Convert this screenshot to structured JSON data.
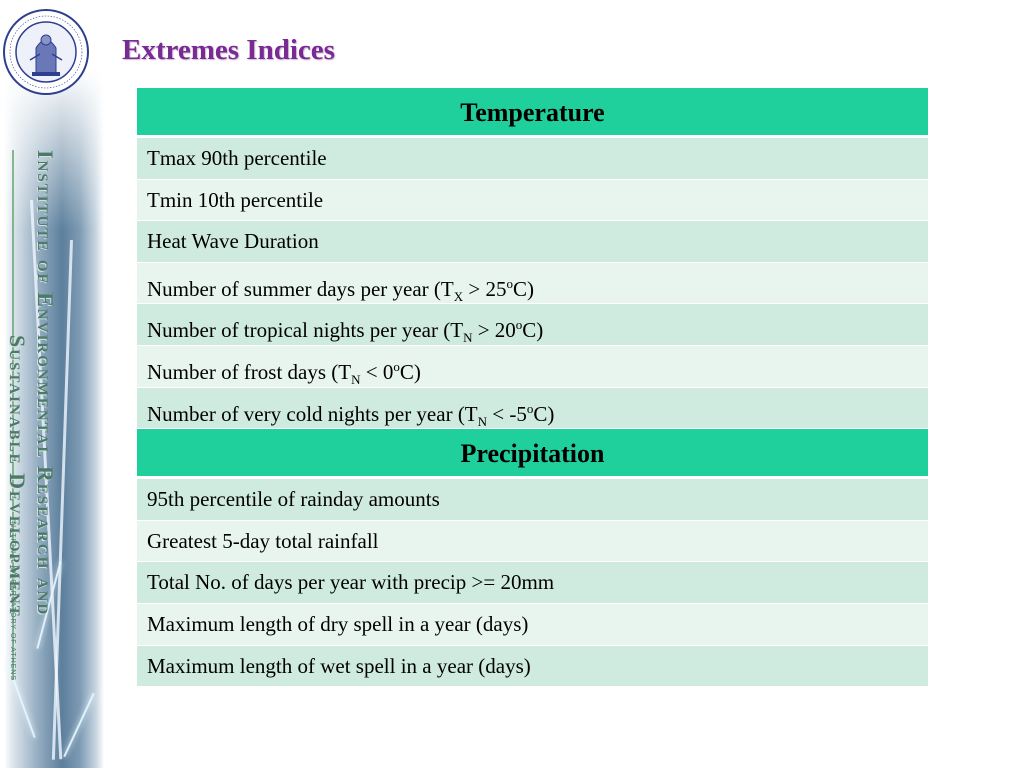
{
  "slide": {
    "title": "Extremes Indices"
  },
  "sidebar": {
    "institute_line1": "Institute of Environmental Research and",
    "institute_line2": "Sustainable Development",
    "institute_line3": "NATIONAL OBSERVATORY OF ATHENS",
    "logo_icon": "national-observatory-seal-icon",
    "logo_ring_text": "ΕΘΝΙΚΟΝ ΑΣΤΕΡΟΣΚΟΠΕΙΟΝ ΑΘΗΝΩΝ · NATIONAL OBSERVATORY ATHENS"
  },
  "table": {
    "temperature_header": "Temperature",
    "temperature_rows": [
      {
        "text": "Tmax 90th percentile"
      },
      {
        "text": "Tmin 10th percentile"
      },
      {
        "text": "Heat Wave Duration"
      },
      {
        "pre": "Number of summer days per year (T",
        "sub": "X",
        "mid": " > 25",
        "sup": "o",
        "post": "C)"
      },
      {
        "pre": "Number of tropical nights per year  (T",
        "sub": "N",
        "mid": " > 20",
        "sup": "o",
        "post": "C)"
      },
      {
        "pre": "Number of frost days (T",
        "sub": "N",
        "mid": " < 0",
        "sup": "o",
        "post": "C)"
      },
      {
        "pre": "Number of very cold nights per year  (T",
        "sub": "N",
        "mid": " < -5",
        "sup": "o",
        "post": "C)"
      }
    ],
    "precipitation_header": "Precipitation",
    "precipitation_rows": [
      {
        "text": "95th percentile of rainday amounts"
      },
      {
        "text": "Greatest 5-day total rainfall"
      },
      {
        "text": "Total No. of days per year with precip >= 20mm"
      },
      {
        "text": "Maximum length of dry spell in a year (days)"
      },
      {
        "text": "Maximum length of wet spell in a year (days)"
      }
    ]
  },
  "colors": {
    "title": "#7a2a93",
    "header_bg": "#1fcf9c",
    "row_odd": "#cfeadf",
    "row_even": "#e8f5ef"
  }
}
